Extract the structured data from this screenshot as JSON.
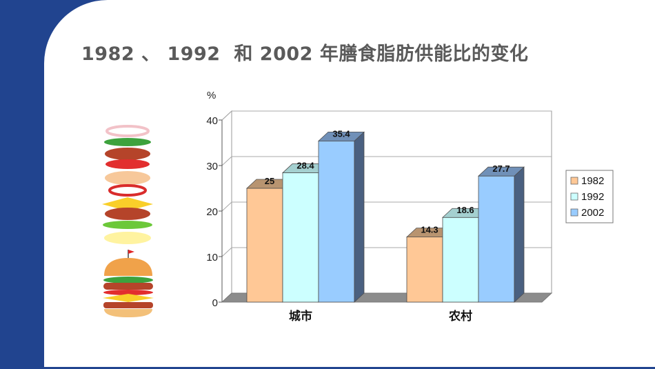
{
  "title": "1982 、 1992  和 2002 年膳食脂肪供能比的变化",
  "chart_data": {
    "type": "bar",
    "ylabel": "%",
    "ylim": [
      0,
      40
    ],
    "yticks": [
      0,
      10,
      20,
      30,
      40
    ],
    "grid": true,
    "legend_position": "right",
    "categories": [
      "城市",
      "农村"
    ],
    "series": [
      {
        "name": "1982",
        "values": [
          25,
          14.3
        ],
        "color": "#ffc896"
      },
      {
        "name": "1992",
        "values": [
          28.4,
          18.6
        ],
        "color": "#ccffff"
      },
      {
        "name": "2002",
        "values": [
          35.4,
          27.7
        ],
        "color": "#99ccff"
      }
    ],
    "data_labels": [
      [
        "25",
        "14.3"
      ],
      [
        "28.4",
        "18.6"
      ],
      [
        "35.4",
        "27.7"
      ]
    ]
  }
}
